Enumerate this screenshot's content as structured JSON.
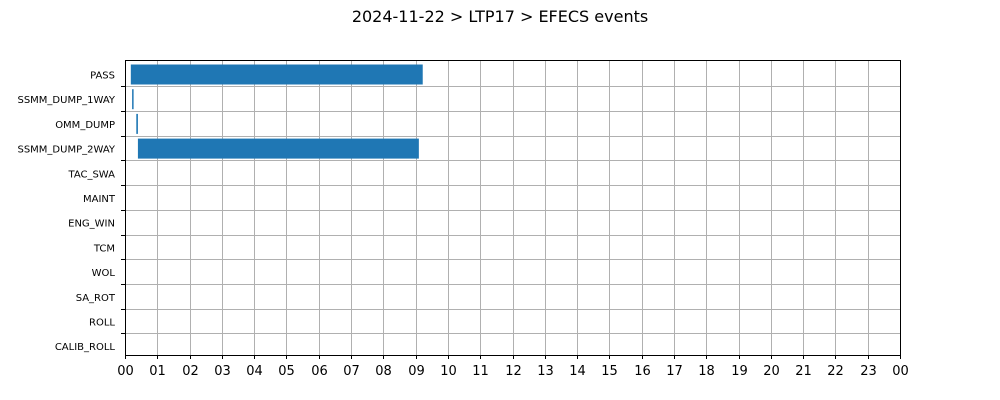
{
  "chart_data": {
    "type": "bar",
    "orientation": "horizontal",
    "title": "2024-11-22 > LTP17 > EFECS events",
    "xlabel": "",
    "ylabel": "",
    "x_unit": "hour",
    "x_range": [
      0,
      24
    ],
    "x_tick_labels": [
      "00",
      "01",
      "02",
      "03",
      "04",
      "05",
      "06",
      "07",
      "08",
      "09",
      "10",
      "11",
      "12",
      "13",
      "14",
      "15",
      "16",
      "17",
      "18",
      "19",
      "20",
      "21",
      "22",
      "23",
      "00"
    ],
    "grid": true,
    "legend": "none",
    "color": "#1f77b4",
    "categories": [
      "PASS",
      "SSMM_DUMP_1WAY",
      "OMM_DUMP",
      "SSMM_DUMP_2WAY",
      "TAC_SWA",
      "MAINT",
      "ENG_WIN",
      "TCM",
      "WOL",
      "SA_ROT",
      "ROLL",
      "CALIB_ROLL"
    ],
    "events": [
      {
        "category": "PASS",
        "start": 0.18,
        "end": 9.22
      },
      {
        "category": "SSMM_DUMP_1WAY",
        "start": 0.22,
        "end": 0.25
      },
      {
        "category": "OMM_DUMP",
        "start": 0.35,
        "end": 0.4
      },
      {
        "category": "SSMM_DUMP_2WAY",
        "start": 0.4,
        "end": 9.1
      }
    ]
  }
}
